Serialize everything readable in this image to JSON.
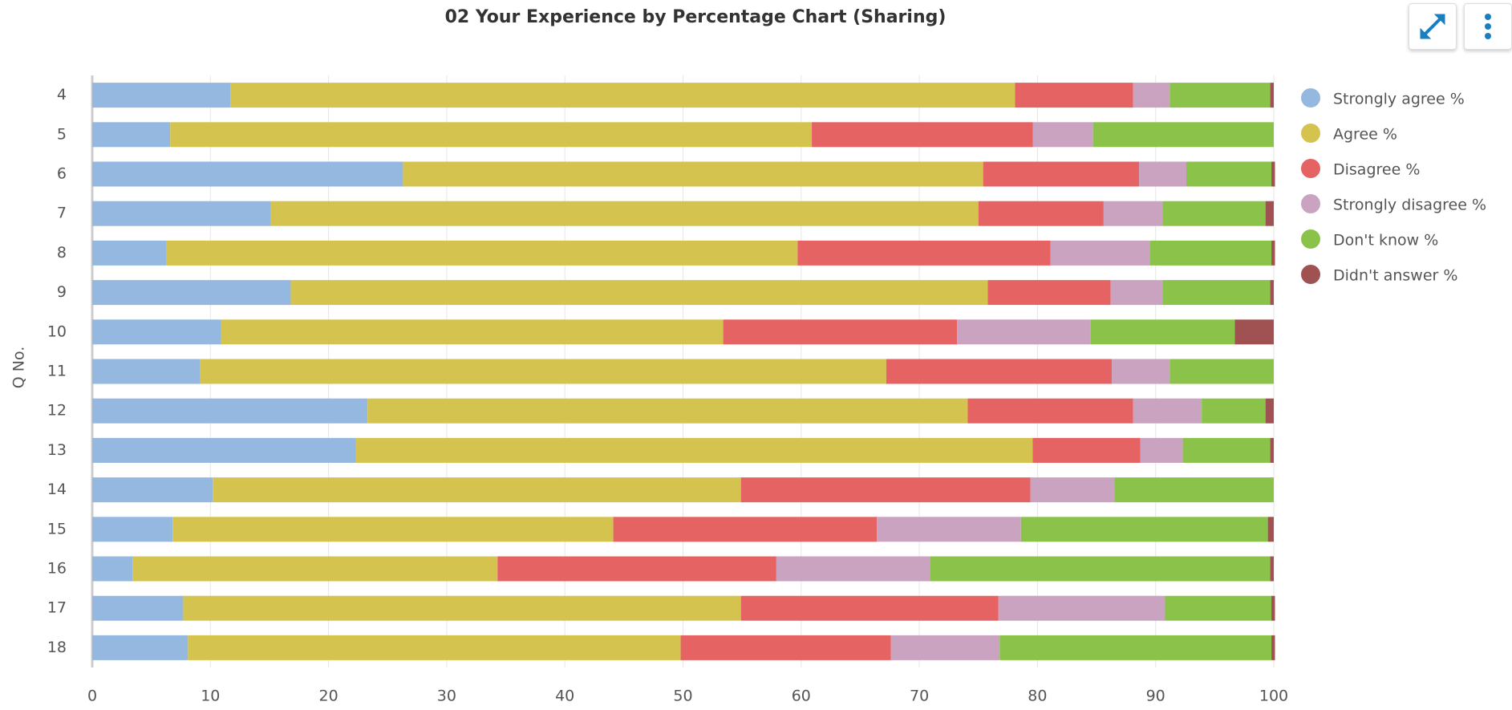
{
  "chart_data": {
    "type": "bar",
    "orientation": "horizontal",
    "stacked": true,
    "title": "02 Your Experience by Percentage Chart (Sharing)",
    "y_label": "Q No.",
    "categories": [
      "4",
      "5",
      "6",
      "7",
      "8",
      "9",
      "10",
      "11",
      "12",
      "13",
      "14",
      "15",
      "16",
      "17",
      "18"
    ],
    "series": [
      {
        "name": "Strongly agree %",
        "color": "#95b8e0",
        "values": [
          11.7,
          6.6,
          26.3,
          15.1,
          6.3,
          16.8,
          10.9,
          9.1,
          23.3,
          22.3,
          10.2,
          6.8,
          3.4,
          7.7,
          8.1
        ]
      },
      {
        "name": "Agree %",
        "color": "#d4c44f",
        "values": [
          66.4,
          54.3,
          49.1,
          59.9,
          53.4,
          59.0,
          42.5,
          58.1,
          50.8,
          57.3,
          44.7,
          37.3,
          30.9,
          47.2,
          41.7
        ]
      },
      {
        "name": "Disagree %",
        "color": "#e66363",
        "values": [
          10.0,
          18.7,
          13.2,
          10.6,
          21.4,
          10.4,
          19.8,
          19.1,
          14.0,
          9.1,
          24.5,
          22.3,
          23.6,
          21.8,
          17.8
        ]
      },
      {
        "name": "Strongly disagree %",
        "color": "#c9a3c0",
        "values": [
          3.1,
          5.1,
          4.0,
          5.0,
          8.4,
          4.4,
          11.3,
          4.9,
          5.8,
          3.6,
          7.1,
          12.2,
          13.0,
          14.1,
          9.2
        ]
      },
      {
        "name": "Don't know %",
        "color": "#8bc34a",
        "values": [
          8.5,
          15.3,
          7.2,
          8.7,
          10.3,
          9.1,
          12.2,
          8.8,
          5.4,
          7.4,
          13.5,
          20.9,
          28.8,
          9.0,
          23.0
        ]
      },
      {
        "name": "Didn't answer %",
        "color": "#a05252",
        "values": [
          0.3,
          0,
          0.3,
          0.7,
          0.3,
          0.3,
          3.3,
          0,
          0.7,
          0.3,
          0,
          0.5,
          0.3,
          0.3,
          0.3
        ]
      }
    ],
    "xlim": [
      0,
      100
    ],
    "xticks": [
      0,
      10,
      20,
      30,
      40,
      50,
      60,
      70,
      80,
      90,
      100
    ],
    "grid": true,
    "legend": "right"
  }
}
